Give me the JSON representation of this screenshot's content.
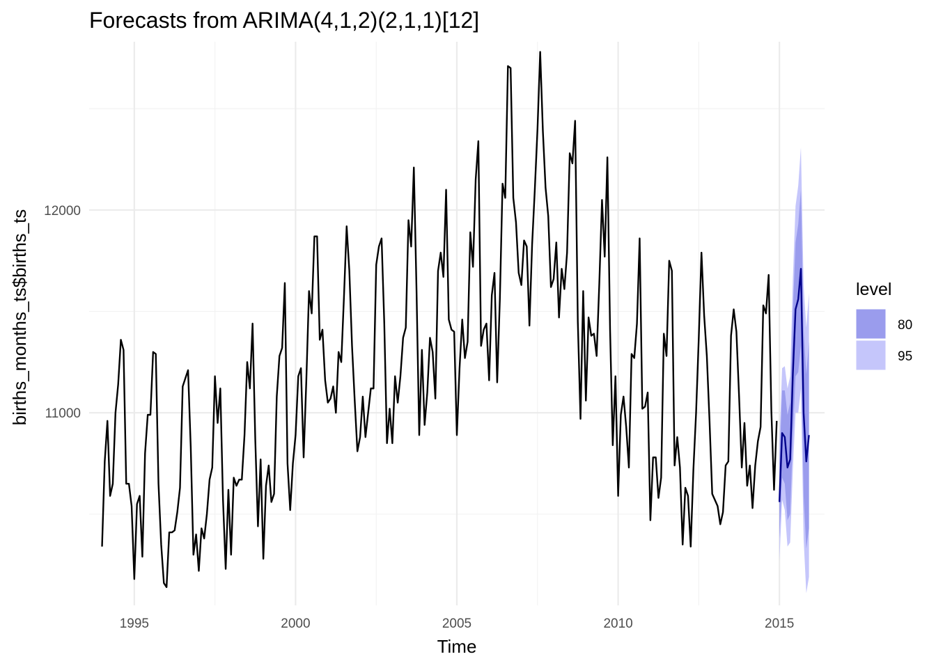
{
  "chart_data": {
    "type": "line",
    "title": "Forecasts from ARIMA(4,1,2)(2,1,1)[12]",
    "xlabel": "Time",
    "ylabel": "births_months_ts$births_ts",
    "xlim": [
      1993.6,
      2016.4
    ],
    "ylim": [
      10050,
      12830
    ],
    "x_ticks": [
      1995,
      2000,
      2005,
      2010,
      2015
    ],
    "y_ticks": [
      11000,
      12000
    ],
    "grid": true,
    "legend": {
      "title": "level",
      "placement": "right",
      "entries": [
        {
          "label": "80",
          "color": "#9a9ced"
        },
        {
          "label": "95",
          "color": "#c5c6fb"
        }
      ]
    },
    "colors": {
      "history": "#000000",
      "forecast": "#00008b",
      "band80": "#9a9ced",
      "band95": "#c5c6fb"
    },
    "history": {
      "name": "",
      "start": 1994.0,
      "frequency": 12,
      "values": [
        10340,
        10760,
        10960,
        10590,
        10650,
        11000,
        11140,
        11360,
        11310,
        10650,
        10650,
        10540,
        10180,
        10550,
        10590,
        10290,
        10800,
        10990,
        10990,
        11300,
        11290,
        10650,
        10350,
        10160,
        10140,
        10410,
        10410,
        10420,
        10510,
        10630,
        11130,
        11170,
        11210,
        10830,
        10300,
        10400,
        10220,
        10430,
        10380,
        10500,
        10670,
        10730,
        11180,
        10950,
        11120,
        10570,
        10230,
        10620,
        10300,
        10680,
        10640,
        10670,
        10670,
        10890,
        11250,
        11120,
        11440,
        10870,
        10440,
        10770,
        10280,
        10640,
        10740,
        10560,
        10600,
        11080,
        11280,
        11320,
        11640,
        10750,
        10520,
        10750,
        10890,
        11180,
        11220,
        10780,
        11160,
        11600,
        11490,
        11870,
        11870,
        11360,
        11410,
        11160,
        11050,
        11070,
        11130,
        11000,
        11300,
        11250,
        11570,
        11920,
        11700,
        11330,
        11060,
        10810,
        10880,
        11080,
        10880,
        11000,
        11120,
        11120,
        11730,
        11820,
        11860,
        11440,
        10850,
        11020,
        10850,
        11180,
        11050,
        11180,
        11370,
        11420,
        11950,
        11820,
        12210,
        11600,
        10890,
        11310,
        10940,
        11100,
        11370,
        11300,
        11070,
        11700,
        11790,
        11670,
        12100,
        11460,
        11410,
        11400,
        10890,
        11220,
        11460,
        11270,
        11350,
        11890,
        11720,
        12150,
        12340,
        11330,
        11410,
        11440,
        11160,
        11580,
        11690,
        11150,
        11560,
        12130,
        12060,
        12710,
        12700,
        12060,
        11940,
        11690,
        11630,
        11850,
        11820,
        11430,
        11830,
        12100,
        12400,
        12780,
        12390,
        12110,
        11970,
        11620,
        11660,
        11840,
        11470,
        11710,
        11610,
        11790,
        12280,
        12230,
        12440,
        11450,
        10970,
        11600,
        11060,
        11470,
        11380,
        11390,
        11280,
        11640,
        12050,
        11770,
        12260,
        11410,
        10840,
        11180,
        10590,
        10990,
        11080,
        10930,
        10730,
        11290,
        11270,
        11440,
        11860,
        11020,
        11030,
        11100,
        10470,
        10780,
        10780,
        10580,
        10680,
        11390,
        11280,
        11750,
        11700,
        10740,
        10880,
        10730,
        10350,
        10630,
        10590,
        10340,
        10720,
        11000,
        11370,
        11790,
        11480,
        11280,
        10960,
        10600,
        10570,
        10540,
        10450,
        10510,
        10740,
        10760,
        11380,
        11510,
        11400,
        11080,
        10730,
        10950,
        10640,
        10740,
        10530,
        10740,
        10860,
        10930,
        11530,
        11490,
        11680,
        11010,
        10620,
        10960
      ]
    },
    "forecast": {
      "name": "",
      "start": 2015.0,
      "frequency": 12,
      "values": [
        10560,
        10900,
        10880,
        10730,
        10770,
        11190,
        11510,
        11560,
        11710,
        11000,
        10760,
        10890
      ],
      "lo80": [
        10380,
        10680,
        10650,
        10470,
        10500,
        10880,
        11180,
        11200,
        11330,
        10590,
        10330,
        10430
      ],
      "hi80": [
        10750,
        11110,
        11110,
        10990,
        11050,
        11500,
        11840,
        11930,
        12100,
        11410,
        11190,
        11350
      ],
      "lo95": [
        10270,
        10570,
        10520,
        10340,
        10360,
        10720,
        11000,
        11000,
        11120,
        10380,
        10110,
        10190
      ],
      "hi95": [
        10850,
        11220,
        11230,
        11120,
        11180,
        11660,
        12020,
        12120,
        12310,
        11630,
        11420,
        11590
      ]
    }
  }
}
